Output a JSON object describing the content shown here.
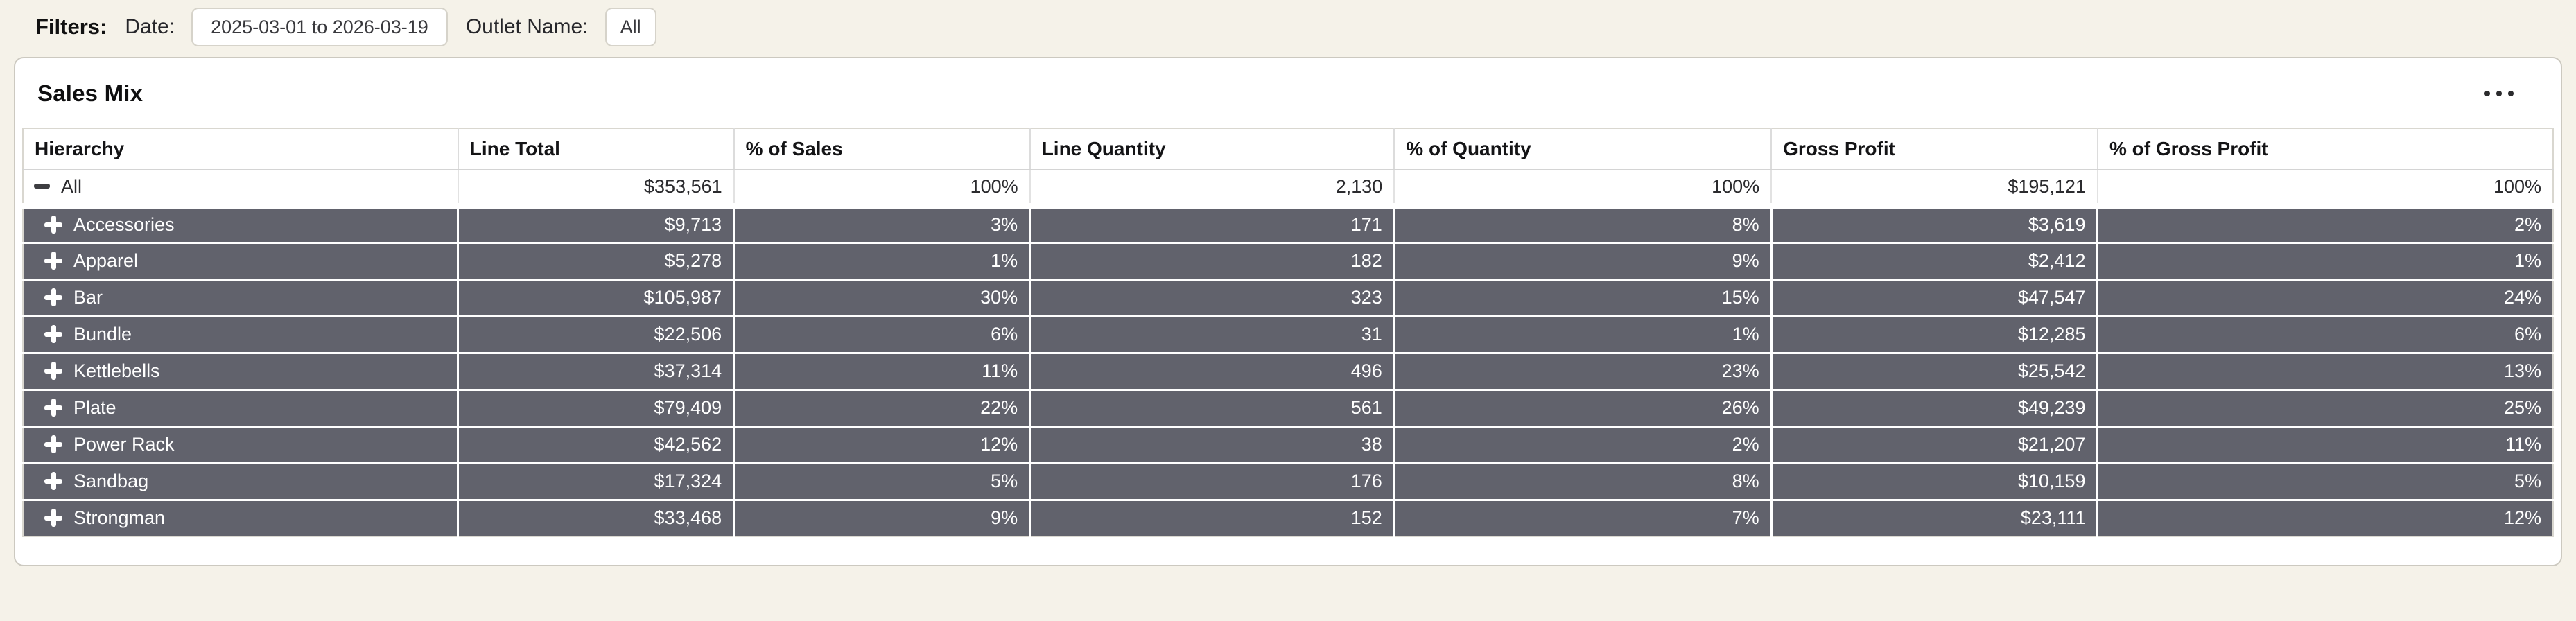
{
  "filters": {
    "title": "Filters:",
    "date_label": "Date:",
    "date_value": "2025-03-01 to 2026-03-19",
    "outlet_label": "Outlet Name:",
    "outlet_value": "All"
  },
  "card": {
    "title": "Sales Mix",
    "menu_icon": "ellipsis-horizontal"
  },
  "table": {
    "columns": [
      {
        "label": "Hierarchy",
        "align": "left"
      },
      {
        "label": "Line Total",
        "align": "right"
      },
      {
        "label": "% of Sales",
        "align": "right"
      },
      {
        "label": "Line Quantity",
        "align": "right"
      },
      {
        "label": "% of Quantity",
        "align": "right"
      },
      {
        "label": "Gross Profit",
        "align": "right"
      },
      {
        "label": "% of Gross Profit",
        "align": "right"
      }
    ],
    "rows": [
      {
        "name": "All",
        "level": 0,
        "expanded": true,
        "values": [
          "$353,561",
          "100%",
          "2,130",
          "100%",
          "$195,121",
          "100%"
        ]
      },
      {
        "name": "Accessories",
        "level": 1,
        "expanded": false,
        "values": [
          "$9,713",
          "3%",
          "171",
          "8%",
          "$3,619",
          "2%"
        ]
      },
      {
        "name": "Apparel",
        "level": 1,
        "expanded": false,
        "values": [
          "$5,278",
          "1%",
          "182",
          "9%",
          "$2,412",
          "1%"
        ]
      },
      {
        "name": "Bar",
        "level": 1,
        "expanded": false,
        "values": [
          "$105,987",
          "30%",
          "323",
          "15%",
          "$47,547",
          "24%"
        ]
      },
      {
        "name": "Bundle",
        "level": 1,
        "expanded": false,
        "values": [
          "$22,506",
          "6%",
          "31",
          "1%",
          "$12,285",
          "6%"
        ]
      },
      {
        "name": "Kettlebells",
        "level": 1,
        "expanded": false,
        "values": [
          "$37,314",
          "11%",
          "496",
          "23%",
          "$25,542",
          "13%"
        ]
      },
      {
        "name": "Plate",
        "level": 1,
        "expanded": false,
        "values": [
          "$79,409",
          "22%",
          "561",
          "26%",
          "$49,239",
          "25%"
        ]
      },
      {
        "name": "Power Rack",
        "level": 1,
        "expanded": false,
        "values": [
          "$42,562",
          "12%",
          "38",
          "2%",
          "$21,207",
          "11%"
        ]
      },
      {
        "name": "Sandbag",
        "level": 1,
        "expanded": false,
        "values": [
          "$17,324",
          "5%",
          "176",
          "8%",
          "$10,159",
          "5%"
        ]
      },
      {
        "name": "Strongman",
        "level": 1,
        "expanded": false,
        "values": [
          "$33,468",
          "9%",
          "152",
          "7%",
          "$23,111",
          "12%"
        ]
      }
    ]
  },
  "colors": {
    "page_bg": "#f5f2e9",
    "card_bg": "#ffffff",
    "row_dark_bg": "#61626c",
    "row_dark_text": "#ffffff",
    "table_border": "#d9d7d0",
    "text_main": "#1c1c1e"
  }
}
